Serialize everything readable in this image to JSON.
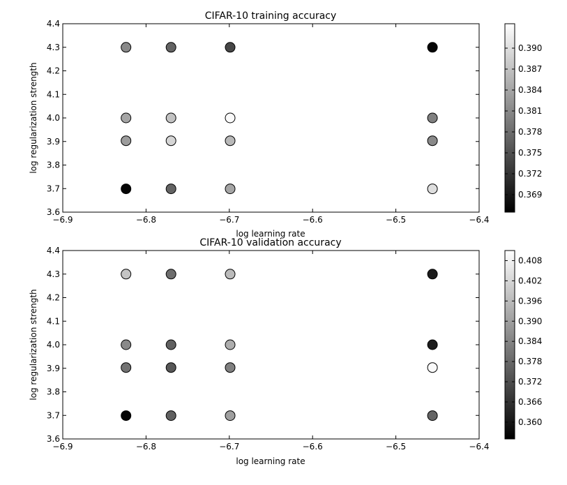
{
  "chart_data": [
    {
      "type": "scatter",
      "title": "CIFAR-10 training accuracy",
      "xlabel": "log learning rate",
      "ylabel": "log regularization strength",
      "xlim": [
        -6.9,
        -6.4
      ],
      "ylim": [
        3.6,
        4.4
      ],
      "x_ticks": [
        "−6.9",
        "−6.8",
        "−6.7",
        "−6.6",
        "−6.5",
        "−6.4"
      ],
      "x_tick_values": [
        -6.9,
        -6.8,
        -6.7,
        -6.6,
        -6.5,
        -6.4
      ],
      "y_ticks": [
        "3.6",
        "3.7",
        "3.8",
        "3.9",
        "4.0",
        "4.1",
        "4.2",
        "4.3",
        "4.4"
      ],
      "y_tick_values": [
        3.6,
        3.7,
        3.8,
        3.9,
        4.0,
        4.1,
        4.2,
        4.3,
        4.4
      ],
      "grid": false,
      "colormap": "gray",
      "colorbar": {
        "vmin": 0.3665,
        "vmax": 0.3935,
        "ticks": [
          "0.369",
          "0.372",
          "0.375",
          "0.378",
          "0.381",
          "0.384",
          "0.387",
          "0.390"
        ],
        "tick_values": [
          0.369,
          0.372,
          0.375,
          0.378,
          0.381,
          0.384,
          0.387,
          0.39
        ]
      },
      "points": [
        {
          "x": -6.824,
          "y": 4.3,
          "value": 0.381
        },
        {
          "x": -6.77,
          "y": 4.3,
          "value": 0.377
        },
        {
          "x": -6.699,
          "y": 4.3,
          "value": 0.374
        },
        {
          "x": -6.456,
          "y": 4.3,
          "value": 0.367
        },
        {
          "x": -6.824,
          "y": 4.0,
          "value": 0.384
        },
        {
          "x": -6.77,
          "y": 4.0,
          "value": 0.387
        },
        {
          "x": -6.699,
          "y": 4.0,
          "value": 0.393
        },
        {
          "x": -6.456,
          "y": 4.0,
          "value": 0.38
        },
        {
          "x": -6.824,
          "y": 3.903,
          "value": 0.383
        },
        {
          "x": -6.77,
          "y": 3.903,
          "value": 0.389
        },
        {
          "x": -6.699,
          "y": 3.903,
          "value": 0.386
        },
        {
          "x": -6.456,
          "y": 3.903,
          "value": 0.381
        },
        {
          "x": -6.824,
          "y": 3.699,
          "value": 0.367
        },
        {
          "x": -6.77,
          "y": 3.699,
          "value": 0.377
        },
        {
          "x": -6.699,
          "y": 3.699,
          "value": 0.384
        },
        {
          "x": -6.456,
          "y": 3.699,
          "value": 0.39
        }
      ]
    },
    {
      "type": "scatter",
      "title": "CIFAR-10 validation accuracy",
      "xlabel": "log learning rate",
      "ylabel": "log regularization strength",
      "xlim": [
        -6.9,
        -6.4
      ],
      "ylim": [
        3.6,
        4.4
      ],
      "x_ticks": [
        "−6.9",
        "−6.8",
        "−6.7",
        "−6.6",
        "−6.5",
        "−6.4"
      ],
      "x_tick_values": [
        -6.9,
        -6.8,
        -6.7,
        -6.6,
        -6.5,
        -6.4
      ],
      "y_ticks": [
        "3.6",
        "3.7",
        "3.8",
        "3.9",
        "4.0",
        "4.1",
        "4.2",
        "4.3",
        "4.4"
      ],
      "y_tick_values": [
        3.6,
        3.7,
        3.8,
        3.9,
        4.0,
        4.1,
        4.2,
        4.3,
        4.4
      ],
      "grid": false,
      "colormap": "gray",
      "colorbar": {
        "vmin": 0.355,
        "vmax": 0.411,
        "ticks": [
          "0.360",
          "0.366",
          "0.372",
          "0.378",
          "0.384",
          "0.390",
          "0.396",
          "0.402",
          "0.408"
        ],
        "tick_values": [
          0.36,
          0.366,
          0.372,
          0.378,
          0.384,
          0.39,
          0.396,
          0.402,
          0.408
        ]
      },
      "points": [
        {
          "x": -6.824,
          "y": 4.3,
          "value": 0.398
        },
        {
          "x": -6.77,
          "y": 4.3,
          "value": 0.379
        },
        {
          "x": -6.699,
          "y": 4.3,
          "value": 0.396
        },
        {
          "x": -6.456,
          "y": 4.3,
          "value": 0.361
        },
        {
          "x": -6.824,
          "y": 4.0,
          "value": 0.385
        },
        {
          "x": -6.77,
          "y": 4.0,
          "value": 0.376
        },
        {
          "x": -6.699,
          "y": 4.0,
          "value": 0.393
        },
        {
          "x": -6.456,
          "y": 4.0,
          "value": 0.361
        },
        {
          "x": -6.824,
          "y": 3.903,
          "value": 0.38
        },
        {
          "x": -6.77,
          "y": 3.903,
          "value": 0.374
        },
        {
          "x": -6.699,
          "y": 3.903,
          "value": 0.383
        },
        {
          "x": -6.456,
          "y": 3.903,
          "value": 0.41
        },
        {
          "x": -6.824,
          "y": 3.699,
          "value": 0.356
        },
        {
          "x": -6.77,
          "y": 3.699,
          "value": 0.376
        },
        {
          "x": -6.699,
          "y": 3.699,
          "value": 0.39
        },
        {
          "x": -6.456,
          "y": 3.699,
          "value": 0.377
        }
      ]
    }
  ]
}
